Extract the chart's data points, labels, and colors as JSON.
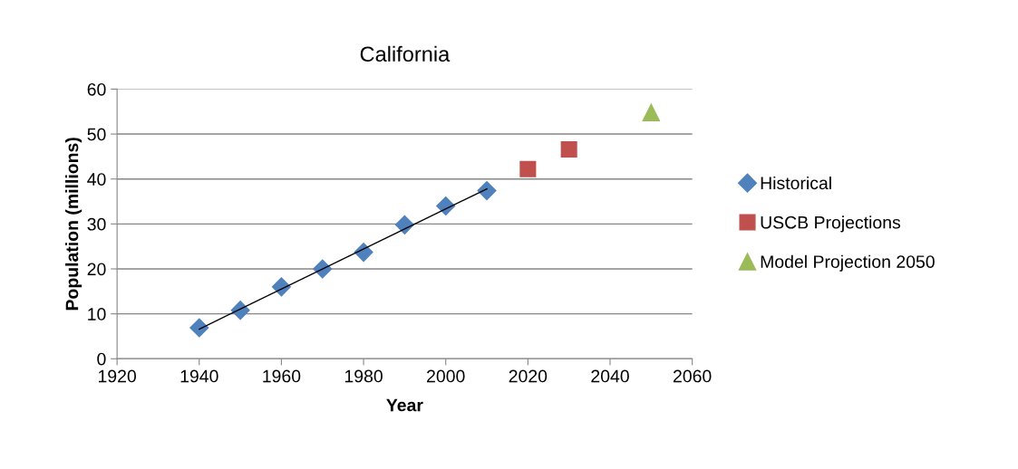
{
  "chart_data": {
    "type": "scatter",
    "title": "California",
    "xlabel": "Year",
    "ylabel": "Population (millions)",
    "xlim": [
      1920,
      2060
    ],
    "xticks": [
      1920,
      1940,
      1960,
      1980,
      2000,
      2020,
      2040,
      2060
    ],
    "ylim": [
      0,
      60
    ],
    "yticks": [
      0,
      10,
      20,
      30,
      40,
      50,
      60
    ],
    "grid": "y",
    "legend": "right",
    "series": [
      {
        "name": "Historical",
        "color": "#4f81bd",
        "marker": "diamond",
        "x": [
          1940,
          1950,
          1960,
          1970,
          1980,
          1990,
          2000,
          2010
        ],
        "values": [
          6.9,
          10.8,
          16.0,
          20.0,
          23.7,
          29.8,
          34.0,
          37.4
        ]
      },
      {
        "name": "USCB Projections",
        "color": "#c0504d",
        "marker": "square",
        "x": [
          2020,
          2030
        ],
        "values": [
          42.2,
          46.6
        ]
      },
      {
        "name": "Model Projection 2050",
        "color": "#9bbb59",
        "marker": "triangle",
        "x": [
          2050
        ],
        "values": [
          54.8
        ]
      },
      {
        "type": "line",
        "color": "#000000",
        "marker": "none",
        "x": [
          1940,
          2010
        ],
        "values": [
          6.6,
          37.8
        ]
      }
    ]
  }
}
